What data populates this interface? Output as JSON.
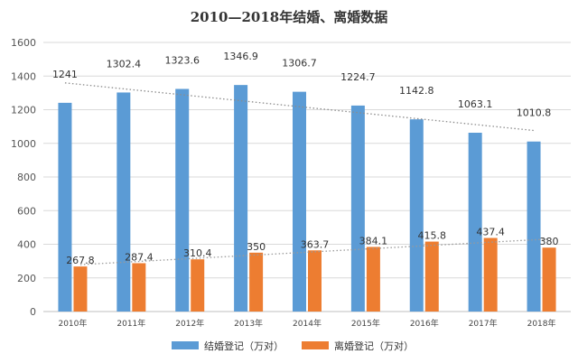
{
  "chart_data": {
    "type": "bar",
    "title": "2010—2018年结婚、离婚数据",
    "categories": [
      "2010年",
      "2011年",
      "2012年",
      "2013年",
      "2014年",
      "2015年",
      "2016年",
      "2017年",
      "2018年"
    ],
    "series": [
      {
        "name": "结婚登记（万对）",
        "color": "#5B9BD5",
        "values": [
          1241,
          1302.4,
          1323.6,
          1346.9,
          1306.7,
          1224.7,
          1142.8,
          1063.1,
          1010.8
        ],
        "labels": [
          "1241",
          "1302.4",
          "1323.6",
          "1346.9",
          "1306.7",
          "1224.7",
          "1142.8",
          "1063.1",
          "1010.8"
        ],
        "trendline": true
      },
      {
        "name": "离婚登记（万对）",
        "color": "#ED7D31",
        "values": [
          267.8,
          287.4,
          310.4,
          350,
          363.7,
          384.1,
          415.8,
          437.4,
          380
        ],
        "labels": [
          "267.8",
          "287.4",
          "310.4",
          "350",
          "363.7",
          "384.1",
          "415.8",
          "437.4",
          "380"
        ],
        "trendline": true
      }
    ],
    "ylim": [
      0,
      1600
    ],
    "yticks": [
      0,
      200,
      400,
      600,
      800,
      1000,
      1200,
      1400,
      1600
    ],
    "grid": true,
    "legend_position": "bottom"
  }
}
